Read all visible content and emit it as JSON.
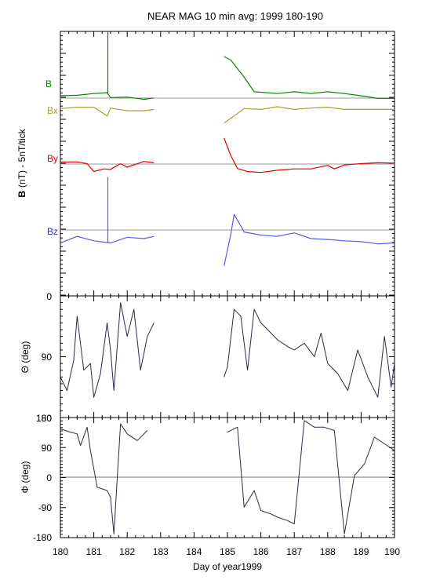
{
  "title": "NEAR MAG 10 min avg: 1999 180-190",
  "x_axis": {
    "label": "Day of year1999",
    "range": [
      180,
      190
    ],
    "ticks": [
      "180",
      "181",
      "182",
      "183",
      "184",
      "185",
      "186",
      "187",
      "188",
      "189",
      "190"
    ]
  },
  "panels": {
    "b": {
      "ylabel_bold": "B",
      "ylabel_rest": "(nT) - 5nT/tick",
      "trace_labels": [
        {
          "text": "B",
          "color": "#008800"
        },
        {
          "text": "Bx",
          "color": "#a8a030"
        },
        {
          "text": "By",
          "color": "#dd0000"
        },
        {
          "text": "Bz",
          "color": "#5a5ae0"
        }
      ]
    },
    "theta": {
      "ylabel": "Θ (deg)",
      "ticks": [
        "0",
        "90",
        "180"
      ]
    },
    "phi": {
      "ylabel": "Φ (deg)",
      "ticks": [
        "180",
        "90",
        "0",
        "-90",
        "-180"
      ]
    }
  },
  "chart_data": [
    {
      "type": "line",
      "title": "NEAR MAG 10 min avg: 1999 180-190",
      "ylabel": "B (nT) - 5nT/tick",
      "xlim": [
        180,
        190
      ],
      "ylim_ticks": [
        0,
        60
      ],
      "note_units": "y values in ticks (5 nT per tick); traces offset for display",
      "gaps": [
        [
          182.8,
          184.9
        ]
      ],
      "series": [
        {
          "name": "B",
          "color": "#008800",
          "points": [
            [
              180.0,
              45.4
            ],
            [
              180.5,
              45.5
            ],
            [
              181.0,
              45.9
            ],
            [
              181.4,
              46.1
            ],
            [
              181.5,
              45.0
            ],
            [
              182.0,
              45.1
            ],
            [
              182.5,
              44.6
            ],
            [
              182.8,
              44.9
            ],
            [
              184.9,
              54.3
            ],
            [
              185.1,
              53.5
            ],
            [
              185.5,
              49.6
            ],
            [
              185.8,
              46.3
            ],
            [
              186.5,
              45.9
            ],
            [
              187.0,
              46.3
            ],
            [
              187.5,
              45.9
            ],
            [
              188.0,
              46.3
            ],
            [
              188.5,
              45.9
            ],
            [
              189.0,
              45.4
            ],
            [
              189.5,
              44.8
            ],
            [
              190.0,
              44.8
            ]
          ]
        },
        {
          "name": "Bx",
          "color": "#a8a030",
          "points": [
            [
              180.0,
              42.5
            ],
            [
              180.5,
              42.8
            ],
            [
              181.0,
              42.8
            ],
            [
              181.4,
              40.8
            ],
            [
              181.5,
              42.6
            ],
            [
              182.0,
              42.0
            ],
            [
              182.5,
              42.0
            ],
            [
              182.8,
              42.3
            ],
            [
              184.9,
              39.2
            ],
            [
              185.2,
              40.8
            ],
            [
              185.5,
              42.5
            ],
            [
              186.0,
              42.3
            ],
            [
              186.5,
              42.9
            ],
            [
              187.0,
              42.3
            ],
            [
              187.5,
              42.6
            ],
            [
              188.0,
              42.8
            ],
            [
              188.5,
              42.3
            ],
            [
              189.0,
              42.3
            ],
            [
              189.5,
              42.3
            ],
            [
              190.0,
              42.3
            ]
          ]
        },
        {
          "name": "By",
          "color": "#dd0000",
          "points": [
            [
              180.0,
              30.4
            ],
            [
              180.5,
              30.4
            ],
            [
              180.8,
              30.0
            ],
            [
              181.0,
              28.2
            ],
            [
              181.3,
              28.8
            ],
            [
              181.5,
              28.7
            ],
            [
              181.8,
              30.0
            ],
            [
              182.0,
              29.2
            ],
            [
              182.5,
              30.5
            ],
            [
              182.8,
              30.2
            ],
            [
              184.9,
              35.8
            ],
            [
              185.1,
              31.8
            ],
            [
              185.3,
              28.9
            ],
            [
              185.6,
              28.2
            ],
            [
              186.0,
              28.0
            ],
            [
              186.5,
              28.5
            ],
            [
              187.0,
              28.8
            ],
            [
              187.5,
              28.8
            ],
            [
              188.0,
              29.6
            ],
            [
              188.2,
              28.8
            ],
            [
              188.5,
              29.7
            ],
            [
              189.0,
              30.0
            ],
            [
              189.5,
              30.2
            ],
            [
              190.0,
              30.1
            ]
          ]
        },
        {
          "name": "Bz",
          "color": "#5a5ae0",
          "points": [
            [
              180.0,
              12.0
            ],
            [
              180.5,
              13.5
            ],
            [
              181.0,
              12.5
            ],
            [
              181.5,
              12.0
            ],
            [
              182.0,
              13.3
            ],
            [
              182.5,
              13.0
            ],
            [
              182.8,
              13.5
            ],
            [
              184.9,
              6.8
            ],
            [
              185.1,
              14.0
            ],
            [
              185.2,
              18.5
            ],
            [
              185.5,
              14.5
            ],
            [
              186.0,
              13.8
            ],
            [
              186.5,
              13.5
            ],
            [
              187.0,
              14.3
            ],
            [
              187.5,
              13.0
            ],
            [
              188.0,
              12.8
            ],
            [
              188.5,
              12.5
            ],
            [
              189.0,
              12.3
            ],
            [
              189.5,
              11.8
            ],
            [
              190.0,
              12.0
            ]
          ]
        }
      ]
    },
    {
      "type": "line",
      "ylabel": "Θ (deg)",
      "xlim": [
        180,
        190
      ],
      "ylim": [
        180,
        0
      ],
      "series": [
        {
          "name": "Θ",
          "color": "#2a2a44",
          "points": [
            [
              180.0,
              120
            ],
            [
              180.2,
              140
            ],
            [
              180.4,
              95
            ],
            [
              180.5,
              30
            ],
            [
              180.7,
              110
            ],
            [
              180.9,
              100
            ],
            [
              181.0,
              150
            ],
            [
              181.2,
              115
            ],
            [
              181.4,
              40
            ],
            [
              181.5,
              80
            ],
            [
              181.6,
              140
            ],
            [
              181.8,
              10
            ],
            [
              182.0,
              60
            ],
            [
              182.2,
              20
            ],
            [
              182.4,
              110
            ],
            [
              182.6,
              60
            ],
            [
              182.8,
              40
            ],
            [
              184.9,
              120
            ],
            [
              185.0,
              105
            ],
            [
              185.2,
              20
            ],
            [
              185.4,
              30
            ],
            [
              185.6,
              110
            ],
            [
              185.8,
              20
            ],
            [
              186.0,
              40
            ],
            [
              186.3,
              55
            ],
            [
              186.5,
              65
            ],
            [
              186.8,
              75
            ],
            [
              187.0,
              80
            ],
            [
              187.3,
              70
            ],
            [
              187.6,
              90
            ],
            [
              187.8,
              55
            ],
            [
              188.0,
              100
            ],
            [
              188.3,
              115
            ],
            [
              188.6,
              140
            ],
            [
              188.9,
              80
            ],
            [
              189.2,
              120
            ],
            [
              189.5,
              150
            ],
            [
              189.7,
              60
            ],
            [
              189.9,
              135
            ],
            [
              190.0,
              100
            ]
          ]
        }
      ]
    },
    {
      "type": "line",
      "ylabel": "Φ (deg)",
      "xlim": [
        180,
        190
      ],
      "ylim": [
        -180,
        180
      ],
      "series": [
        {
          "name": "Φ",
          "color": "#2a2a44",
          "points": [
            [
              180.0,
              145
            ],
            [
              180.3,
              135
            ],
            [
              180.5,
              130
            ],
            [
              180.6,
              95
            ],
            [
              180.8,
              150
            ],
            [
              180.9,
              80
            ],
            [
              181.1,
              -30
            ],
            [
              181.4,
              -40
            ],
            [
              181.5,
              -60
            ],
            [
              181.6,
              -170
            ],
            [
              181.8,
              160
            ],
            [
              182.0,
              130
            ],
            [
              182.3,
              110
            ],
            [
              182.5,
              130
            ],
            [
              182.6,
              140
            ],
            [
              185.0,
              135
            ],
            [
              185.3,
              150
            ],
            [
              185.5,
              -90
            ],
            [
              185.8,
              -40
            ],
            [
              186.0,
              -100
            ],
            [
              186.3,
              -110
            ],
            [
              186.5,
              -120
            ],
            [
              186.8,
              -130
            ],
            [
              187.0,
              -140
            ],
            [
              187.3,
              170
            ],
            [
              187.6,
              150
            ],
            [
              187.9,
              150
            ],
            [
              188.2,
              140
            ],
            [
              188.5,
              -170
            ],
            [
              188.8,
              5
            ],
            [
              189.1,
              40
            ],
            [
              189.4,
              120
            ],
            [
              189.7,
              100
            ],
            [
              190.0,
              80
            ]
          ]
        }
      ]
    }
  ]
}
